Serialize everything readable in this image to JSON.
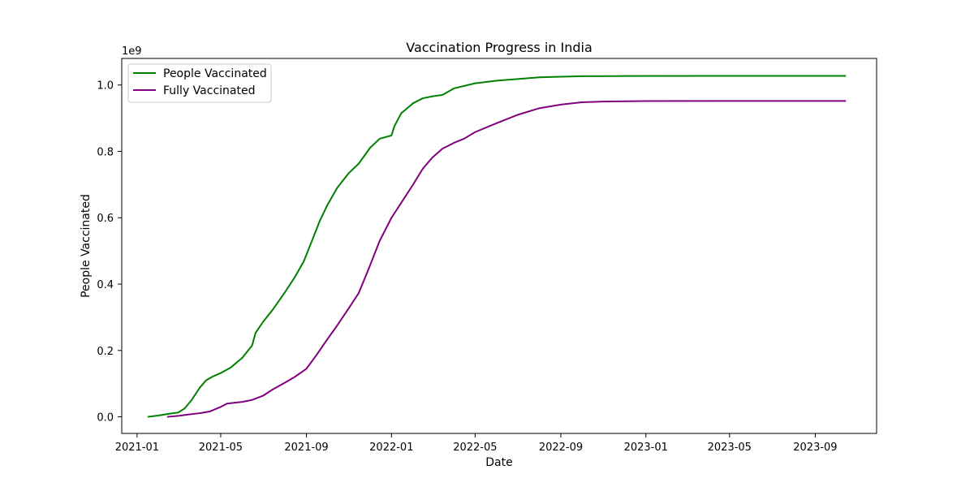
{
  "chart_data": {
    "type": "line",
    "title": "Vaccination Progress in India",
    "xlabel": "Date",
    "ylabel": "People Vaccinated",
    "y_offset_label": "1e9",
    "xlim": [
      "2020-12-10",
      "2023-11-28"
    ],
    "ylim": [
      -0.05,
      1.08
    ],
    "x_ticks": [
      "2021-01",
      "2021-05",
      "2021-09",
      "2022-01",
      "2022-05",
      "2022-09",
      "2023-01",
      "2023-05",
      "2023-09"
    ],
    "y_ticks": [
      "0.0",
      "0.2",
      "0.4",
      "0.6",
      "0.8",
      "1.0"
    ],
    "grid": false,
    "legend_position": "upper-left",
    "series": [
      {
        "name": "People Vaccinated",
        "color": "#008000",
        "points": [
          [
            "2021-01-16",
            0.0
          ],
          [
            "2021-02-01",
            0.004
          ],
          [
            "2021-02-15",
            0.009
          ],
          [
            "2021-03-01",
            0.013
          ],
          [
            "2021-03-10",
            0.025
          ],
          [
            "2021-03-20",
            0.05
          ],
          [
            "2021-04-01",
            0.088
          ],
          [
            "2021-04-10",
            0.11
          ],
          [
            "2021-04-20",
            0.122
          ],
          [
            "2021-05-01",
            0.132
          ],
          [
            "2021-05-15",
            0.148
          ],
          [
            "2021-06-01",
            0.178
          ],
          [
            "2021-06-15",
            0.215
          ],
          [
            "2021-06-20",
            0.253
          ],
          [
            "2021-07-01",
            0.287
          ],
          [
            "2021-07-15",
            0.324
          ],
          [
            "2021-08-01",
            0.375
          ],
          [
            "2021-08-15",
            0.42
          ],
          [
            "2021-08-28",
            0.468
          ],
          [
            "2021-09-10",
            0.536
          ],
          [
            "2021-09-20",
            0.59
          ],
          [
            "2021-10-01",
            0.638
          ],
          [
            "2021-10-15",
            0.69
          ],
          [
            "2021-11-01",
            0.735
          ],
          [
            "2021-11-15",
            0.763
          ],
          [
            "2021-12-01",
            0.81
          ],
          [
            "2021-12-15",
            0.838
          ],
          [
            "2022-01-01",
            0.848
          ],
          [
            "2022-01-05",
            0.875
          ],
          [
            "2022-01-15",
            0.915
          ],
          [
            "2022-02-01",
            0.945
          ],
          [
            "2022-02-15",
            0.96
          ],
          [
            "2022-03-01",
            0.966
          ],
          [
            "2022-03-15",
            0.97
          ],
          [
            "2022-04-01",
            0.99
          ],
          [
            "2022-05-01",
            1.005
          ],
          [
            "2022-06-01",
            1.013
          ],
          [
            "2022-07-01",
            1.018
          ],
          [
            "2022-08-01",
            1.023
          ],
          [
            "2022-09-01",
            1.025
          ],
          [
            "2022-10-01",
            1.0265
          ],
          [
            "2022-12-01",
            1.027
          ],
          [
            "2023-06-01",
            1.0275
          ],
          [
            "2023-10-15",
            1.0275
          ]
        ]
      },
      {
        "name": "Fully Vaccinated",
        "color": "#800080",
        "points": [
          [
            "2021-02-13",
            0.0
          ],
          [
            "2021-03-01",
            0.003
          ],
          [
            "2021-03-15",
            0.007
          ],
          [
            "2021-04-01",
            0.011
          ],
          [
            "2021-04-15",
            0.016
          ],
          [
            "2021-05-01",
            0.03
          ],
          [
            "2021-05-10",
            0.04
          ],
          [
            "2021-06-01",
            0.045
          ],
          [
            "2021-06-15",
            0.051
          ],
          [
            "2021-07-01",
            0.064
          ],
          [
            "2021-07-15",
            0.083
          ],
          [
            "2021-08-01",
            0.103
          ],
          [
            "2021-08-15",
            0.12
          ],
          [
            "2021-09-01",
            0.145
          ],
          [
            "2021-09-15",
            0.185
          ],
          [
            "2021-10-01",
            0.234
          ],
          [
            "2021-10-15",
            0.275
          ],
          [
            "2021-11-01",
            0.328
          ],
          [
            "2021-11-15",
            0.373
          ],
          [
            "2021-12-01",
            0.455
          ],
          [
            "2021-12-15",
            0.53
          ],
          [
            "2022-01-01",
            0.6
          ],
          [
            "2022-01-15",
            0.645
          ],
          [
            "2022-02-01",
            0.7
          ],
          [
            "2022-02-15",
            0.748
          ],
          [
            "2022-03-01",
            0.782
          ],
          [
            "2022-03-15",
            0.808
          ],
          [
            "2022-04-01",
            0.826
          ],
          [
            "2022-04-15",
            0.838
          ],
          [
            "2022-05-01",
            0.858
          ],
          [
            "2022-06-01",
            0.885
          ],
          [
            "2022-07-01",
            0.91
          ],
          [
            "2022-08-01",
            0.93
          ],
          [
            "2022-09-01",
            0.941
          ],
          [
            "2022-10-01",
            0.948
          ],
          [
            "2022-11-01",
            0.95
          ],
          [
            "2023-01-01",
            0.9515
          ],
          [
            "2023-06-01",
            0.952
          ],
          [
            "2023-10-15",
            0.952
          ]
        ]
      }
    ]
  }
}
